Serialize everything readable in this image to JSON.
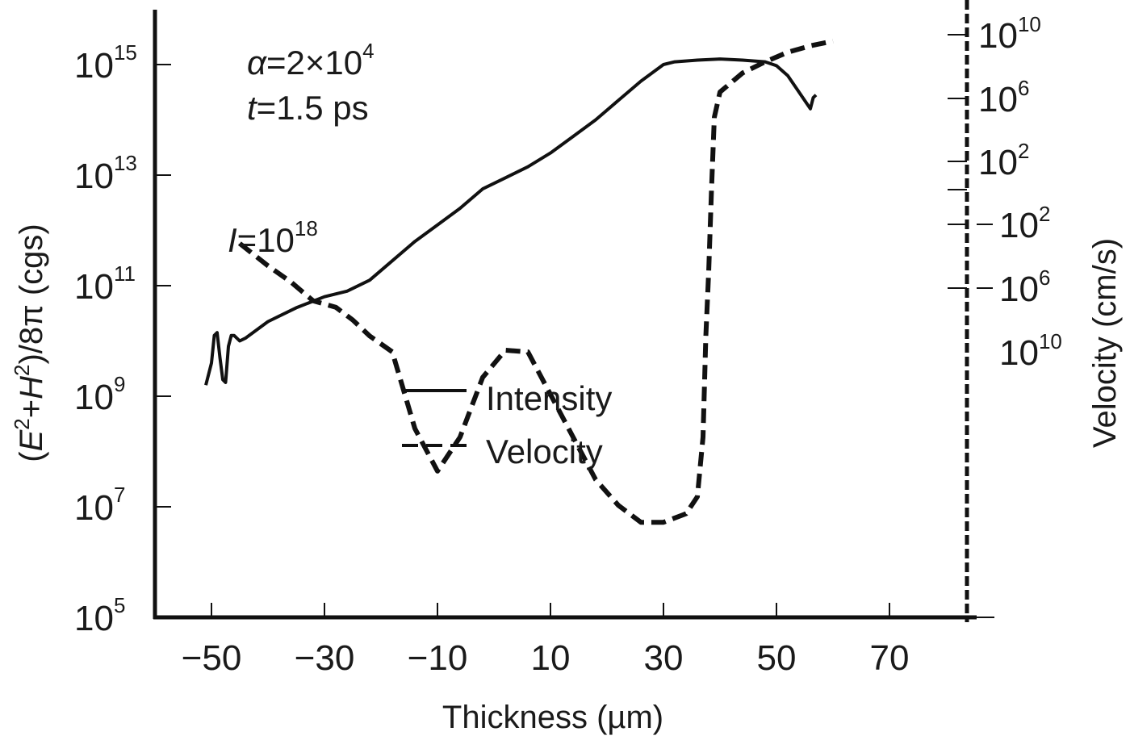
{
  "chart_data": {
    "type": "line",
    "title": "",
    "xlabel": "Thickness (µm)",
    "ylabel_left": {
      "prefix": "(",
      "E": "E",
      "E_sup": "2",
      "plus": "+",
      "H": "H",
      "H_sup": "2",
      "suffix": ")/8π (cgs)"
    },
    "ylabel_right": "Velocity (cm/s)",
    "xlim": [
      -60,
      86
    ],
    "ylim_left_log10": [
      5,
      16
    ],
    "x_ticks": [
      -50,
      -30,
      -10,
      10,
      30,
      50,
      70
    ],
    "x_tick_labels": [
      "−50",
      "−30",
      "−10",
      "10",
      "30",
      "50",
      "70"
    ],
    "y_left_ticks": [
      {
        "exp": 15,
        "base": "10",
        "sup": "15"
      },
      {
        "exp": 13,
        "base": "10",
        "sup": "13"
      },
      {
        "exp": 11,
        "base": "10",
        "sup": "11"
      },
      {
        "exp": 9,
        "base": "10",
        "sup": "9"
      },
      {
        "exp": 7,
        "base": "10",
        "sup": "7"
      },
      {
        "exp": 5,
        "base": "10",
        "sup": "5"
      }
    ],
    "y_right_ticks": [
      {
        "value": "1e10",
        "sign": "",
        "base": "10",
        "sup": "10",
        "pos": 10
      },
      {
        "value": "1e6",
        "sign": "",
        "base": "10",
        "sup": "6",
        "pos": 6
      },
      {
        "value": "1e2",
        "sign": "",
        "base": "10",
        "sup": "2",
        "pos": 2
      },
      {
        "value": "0",
        "sign": "",
        "base": "",
        "sup": "",
        "pos": 0
      },
      {
        "value": "-1e2",
        "sign": "−",
        "base": "10",
        "sup": "2",
        "pos": -2
      },
      {
        "value": "-1e6",
        "sign": "−",
        "base": "10",
        "sup": "6",
        "pos": -6
      },
      {
        "value": "-1e10",
        "sign": "−",
        "base": "10",
        "sup": "10",
        "pos": -10
      }
    ],
    "y_right_range_pos": [
      -10,
      11.5
    ],
    "annotations": [
      {
        "id": "alpha",
        "text_main": "α=2×10",
        "sup": "4"
      },
      {
        "id": "time",
        "text_main": "t=1.5 ps"
      },
      {
        "id": "intensity-label",
        "text_main": "I=10",
        "sup": "18"
      }
    ],
    "legend": {
      "placement": "center",
      "entries": [
        {
          "name": "Intensity",
          "style": "solid"
        },
        {
          "name": "Velocity",
          "style": "dashed"
        }
      ]
    },
    "grid": false,
    "series": [
      {
        "name": "Intensity",
        "axis": "left",
        "style": "solid",
        "x": [
          -51,
          -50,
          -49.5,
          -49,
          -48.5,
          -48,
          -47.5,
          -47,
          -46.5,
          -46,
          -45,
          -44,
          -40,
          -35,
          -30,
          -26,
          -22,
          -18,
          -14,
          -10,
          -6,
          -2,
          2,
          6,
          10,
          14,
          18,
          22,
          26,
          30,
          32,
          36,
          40,
          44,
          48,
          50,
          52,
          54,
          56,
          56.5,
          57
        ],
        "log10_y": [
          9.2,
          9.6,
          10.1,
          10.15,
          9.7,
          9.3,
          9.25,
          9.9,
          10.1,
          10.1,
          10.0,
          10.05,
          10.35,
          10.6,
          10.8,
          10.9,
          11.1,
          11.45,
          11.8,
          12.1,
          12.4,
          12.75,
          12.95,
          13.15,
          13.4,
          13.7,
          14.0,
          14.35,
          14.7,
          15.0,
          15.05,
          15.08,
          15.1,
          15.08,
          15.05,
          14.98,
          14.8,
          14.5,
          14.2,
          14.4,
          14.45
        ]
      },
      {
        "name": "Velocity",
        "axis": "right",
        "style": "dashed",
        "x": [
          -45,
          -40,
          -36,
          -32,
          -28,
          -25,
          -22,
          -18,
          -14,
          -10,
          -6,
          -2,
          2,
          6,
          10,
          14,
          18,
          22,
          26,
          30,
          34,
          36,
          37,
          37.5,
          38,
          38.5,
          39,
          40,
          44,
          48,
          52,
          56,
          60
        ],
        "pos": [
          -3.2,
          -4.6,
          -5.6,
          -6.8,
          -7.2,
          -8.0,
          -9.0,
          -10.0,
          -10.9,
          -11.4,
          -11.0,
          -10.3,
          -9.9,
          -10.0,
          -10.5,
          -11.0,
          -11.5,
          -11.8,
          -12.0,
          -12.0,
          -11.9,
          -11.7,
          -11.0,
          -9.0,
          -5.0,
          0.0,
          4.8,
          6.4,
          7.6,
          8.3,
          8.9,
          9.3,
          9.6
        ]
      }
    ]
  }
}
